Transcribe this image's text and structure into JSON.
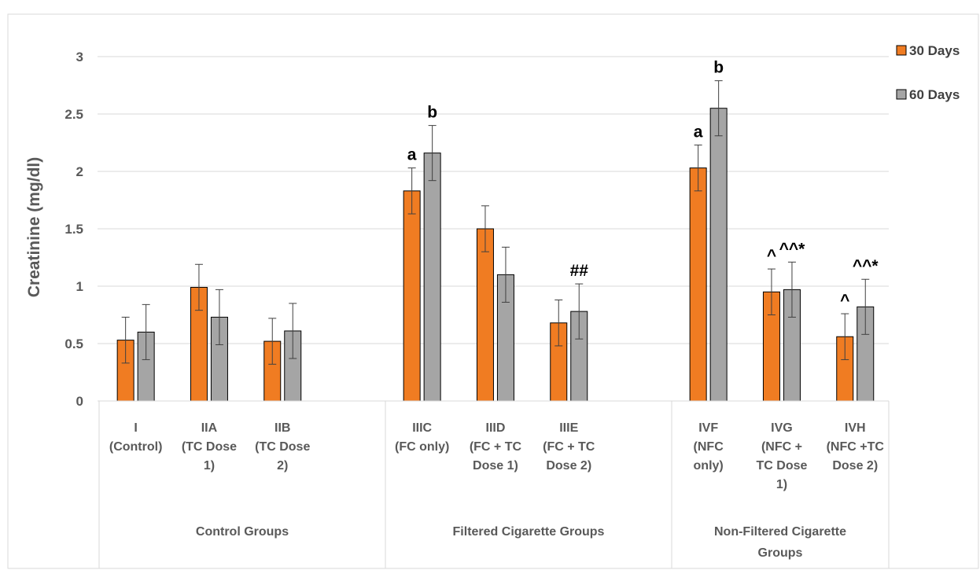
{
  "chart_data": {
    "type": "bar",
    "title": "",
    "ylabel": "Creatinine (mg/dl)",
    "xlabel": "",
    "ylim": [
      0,
      3
    ],
    "yticks": [
      "0",
      "0.5",
      "1",
      "1.5",
      "2",
      "2.5",
      "3"
    ],
    "grid": true,
    "legend_position": "right",
    "categories": [
      [
        "I",
        "(Control)"
      ],
      [
        "IIA",
        "(TC Dose",
        "1)"
      ],
      [
        "IIB",
        "(TC Dose",
        "2)"
      ],
      [
        "IIIC",
        "(FC only)"
      ],
      [
        "IIID",
        "(FC + TC",
        "Dose 1)"
      ],
      [
        "IIIE",
        "(FC + TC",
        "Dose 2)"
      ],
      [
        "IVF",
        "(NFC",
        "only)"
      ],
      [
        "IVG",
        "(NFC +",
        "TC Dose",
        "1)"
      ],
      [
        "IVH",
        "(NFC +TC",
        "Dose 2)"
      ]
    ],
    "groups": [
      {
        "label": [
          "Control Groups"
        ],
        "categories": [
          0,
          1,
          2
        ]
      },
      {
        "label": [
          "Filtered Cigarette Groups"
        ],
        "categories": [
          3,
          4,
          5
        ]
      },
      {
        "label": [
          "Non-Filtered Cigarette",
          "Groups"
        ],
        "categories": [
          6,
          7,
          8
        ]
      }
    ],
    "series": [
      {
        "name": "30 Days",
        "color": "#f07c22",
        "values": [
          0.53,
          0.99,
          0.52,
          1.83,
          1.5,
          0.68,
          2.03,
          0.95,
          0.56
        ],
        "errors": [
          0.2,
          0.2,
          0.2,
          0.2,
          0.2,
          0.2,
          0.2,
          0.2,
          0.2
        ],
        "annotations": [
          "",
          "",
          "",
          "a",
          "",
          "",
          "a",
          "^",
          "^"
        ]
      },
      {
        "name": "60 Days",
        "color": "#a5a5a5",
        "values": [
          0.6,
          0.73,
          0.61,
          2.16,
          1.1,
          0.78,
          2.55,
          0.97,
          0.82
        ],
        "errors": [
          0.24,
          0.24,
          0.24,
          0.24,
          0.24,
          0.24,
          0.24,
          0.24,
          0.24
        ],
        "annotations": [
          "",
          "",
          "",
          "b",
          "",
          "##",
          "b",
          "^^*",
          "^^*"
        ]
      }
    ]
  }
}
